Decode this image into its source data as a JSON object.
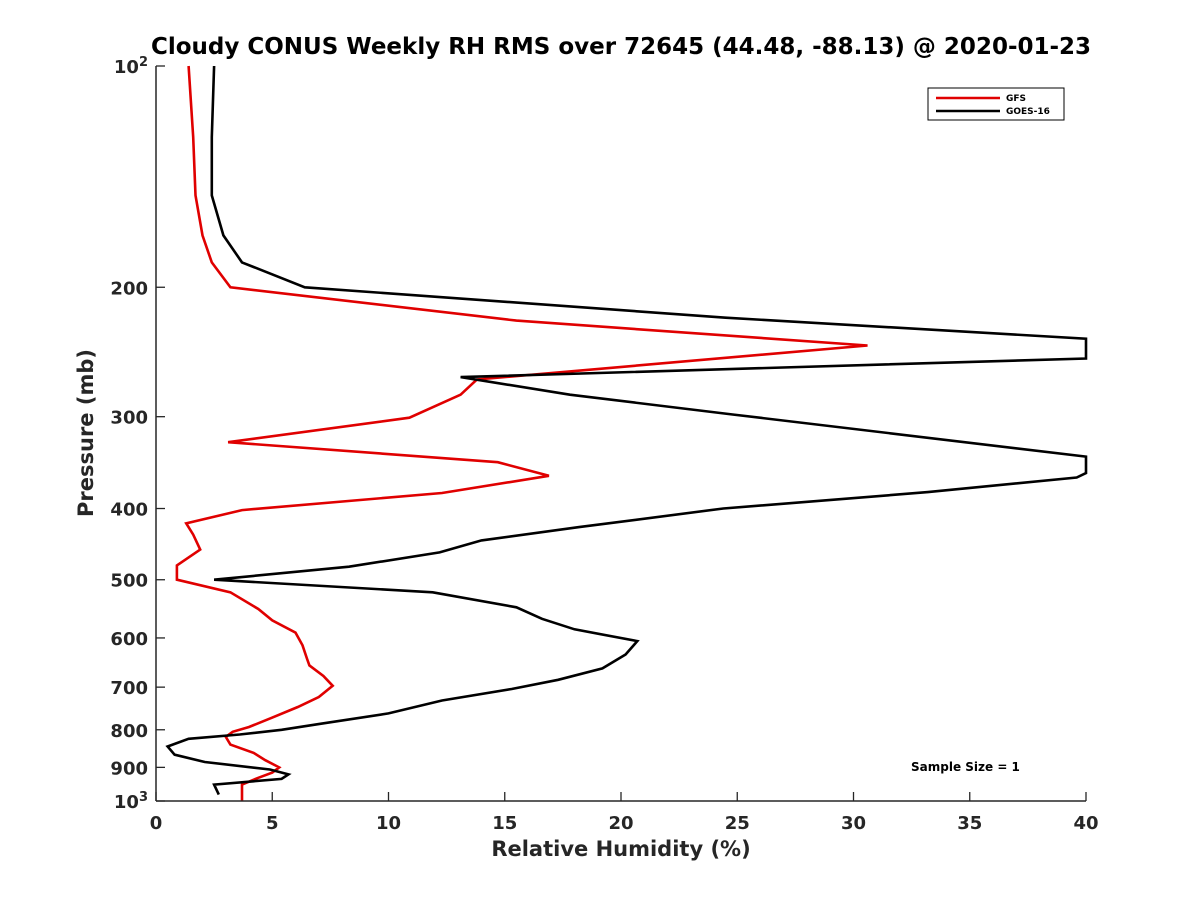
{
  "chart_data": {
    "type": "line",
    "title": "Cloudy CONUS Weekly RH RMS over 72645 (44.48, -88.13) @ 2020-01-23",
    "xlabel": "Relative Humidity (%)",
    "ylabel": "Pressure (mb)",
    "xlim": [
      0,
      40
    ],
    "ylim": [
      100,
      1000
    ],
    "yscale": "log",
    "y_reversed": true,
    "x_ticks": [
      0,
      5,
      10,
      15,
      20,
      25,
      30,
      35,
      40
    ],
    "y_ticks": [
      {
        "value": 100,
        "label": "10",
        "sup": "2"
      },
      {
        "value": 200,
        "label": "200"
      },
      {
        "value": 300,
        "label": "300"
      },
      {
        "value": 400,
        "label": "400"
      },
      {
        "value": 500,
        "label": "500"
      },
      {
        "value": 600,
        "label": "600"
      },
      {
        "value": 700,
        "label": "700"
      },
      {
        "value": 800,
        "label": "800"
      },
      {
        "value": 900,
        "label": "900"
      },
      {
        "value": 1000,
        "label": "10",
        "sup": "3"
      }
    ],
    "legend_position": "top-right",
    "annotation": "Sample Size = 1",
    "series": [
      {
        "name": "GFS",
        "color": "#e00000",
        "points": [
          [
            1.4,
            100
          ],
          [
            1.6,
            125
          ],
          [
            1.7,
            150
          ],
          [
            2.0,
            170
          ],
          [
            2.4,
            185
          ],
          [
            3.2,
            200
          ],
          [
            15.5,
            222
          ],
          [
            30.6,
            240
          ],
          [
            13.8,
            267
          ],
          [
            13.1,
            280
          ],
          [
            10.9,
            301
          ],
          [
            3.1,
            325
          ],
          [
            14.7,
            346
          ],
          [
            16.9,
            361
          ],
          [
            12.3,
            381
          ],
          [
            3.7,
            402
          ],
          [
            1.3,
            419
          ],
          [
            1.6,
            434
          ],
          [
            1.9,
            455
          ],
          [
            0.9,
            478
          ],
          [
            0.9,
            500
          ],
          [
            3.2,
            520
          ],
          [
            4.4,
            548
          ],
          [
            5.0,
            568
          ],
          [
            6.0,
            590
          ],
          [
            6.3,
            614
          ],
          [
            6.5,
            641
          ],
          [
            6.6,
            654
          ],
          [
            7.2,
            676
          ],
          [
            7.6,
            697
          ],
          [
            7.0,
            722
          ],
          [
            6.1,
            745
          ],
          [
            5.0,
            770
          ],
          [
            4.0,
            793
          ],
          [
            3.3,
            805
          ],
          [
            3.0,
            818
          ],
          [
            3.2,
            838
          ],
          [
            4.2,
            860
          ],
          [
            4.7,
            880
          ],
          [
            5.3,
            900
          ],
          [
            5.0,
            915
          ],
          [
            4.4,
            930
          ],
          [
            3.7,
            950
          ],
          [
            3.7,
            975
          ],
          [
            3.7,
            1000
          ]
        ]
      },
      {
        "name": "GOES-16",
        "color": "#000000",
        "points": [
          [
            2.5,
            100
          ],
          [
            2.4,
            125
          ],
          [
            2.4,
            150
          ],
          [
            2.9,
            170
          ],
          [
            3.7,
            185
          ],
          [
            6.4,
            200
          ],
          [
            24.5,
            220
          ],
          [
            40,
            235
          ],
          [
            40,
            250
          ],
          [
            13.1,
            265
          ],
          [
            17.8,
            280
          ],
          [
            24.8,
            298
          ],
          [
            40,
            340
          ],
          [
            40,
            358
          ],
          [
            39.6,
            363
          ],
          [
            33.2,
            380
          ],
          [
            24.4,
            400
          ],
          [
            18.2,
            424
          ],
          [
            14.0,
            442
          ],
          [
            12.2,
            459
          ],
          [
            8.3,
            480
          ],
          [
            2.5,
            500
          ],
          [
            11.9,
            520
          ],
          [
            15.5,
            545
          ],
          [
            16.6,
            565
          ],
          [
            18.0,
            584
          ],
          [
            20.7,
            606
          ],
          [
            20.2,
            632
          ],
          [
            19.2,
            660
          ],
          [
            17.3,
            684
          ],
          [
            15.3,
            704
          ],
          [
            12.3,
            730
          ],
          [
            10.0,
            760
          ],
          [
            7.1,
            785
          ],
          [
            5.4,
            800
          ],
          [
            3.6,
            812
          ],
          [
            1.4,
            823
          ],
          [
            0.5,
            843
          ],
          [
            0.8,
            865
          ],
          [
            2.1,
            885
          ],
          [
            4.9,
            906
          ],
          [
            5.7,
            920
          ],
          [
            5.4,
            933
          ],
          [
            2.5,
            950
          ],
          [
            2.7,
            980
          ]
        ]
      }
    ]
  }
}
